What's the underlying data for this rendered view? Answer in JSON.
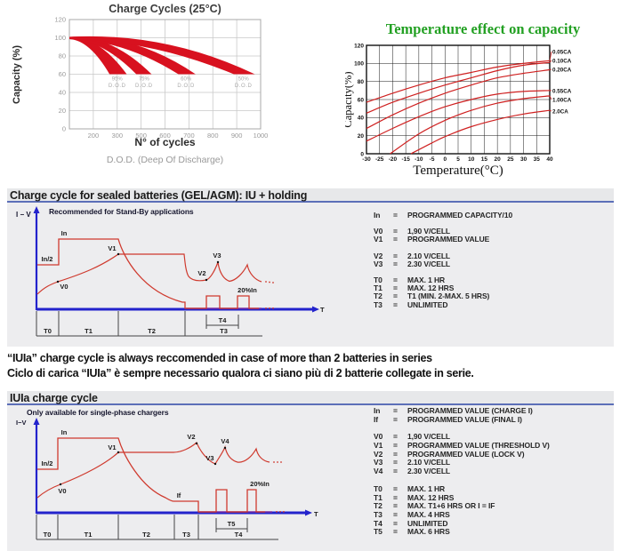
{
  "accent": {
    "red_band": "#d8111f",
    "red_line": "#cf3a2e",
    "red_curve": "#cf2020",
    "blue_axis": "#2323cc",
    "purple_overlap": "#7b2da0",
    "green_title": "#22a022",
    "header_underline": "#5c6fb8",
    "panel_bg": "#ededef",
    "header_bg": "#e7e8ea"
  },
  "chart_data": [
    {
      "id": "charge_cycles",
      "type": "area",
      "title": "Charge Cycles (25°C)",
      "xlabel": "N° of cycles",
      "ylabel": "Capacity (%)",
      "caption": "D.O.D. (Deep Of Discharge)",
      "ylim": [
        0,
        120
      ],
      "yticks": [
        0,
        20,
        40,
        60,
        80,
        100,
        120
      ],
      "xtick_labels": [
        "200",
        "300",
        "500",
        "600",
        "700",
        "800",
        "900",
        "1000"
      ],
      "grid": true,
      "band_note": "red bands start near 100% capacity and fall to 60% at the cycle counts shown; fractions are of full x-axis width",
      "bands": [
        {
          "dod": "95%",
          "sub": "D.O.D",
          "end_frac_inner": 0.21,
          "end_frac_outer": 0.3,
          "label_frac": 0.25
        },
        {
          "dod": "75%",
          "sub": "D.O.D",
          "end_frac_inner": 0.35,
          "end_frac_outer": 0.43,
          "label_frac": 0.39
        },
        {
          "dod": "60%",
          "sub": "D.O.D",
          "end_frac_inner": 0.57,
          "end_frac_outer": 0.66,
          "label_frac": 0.61
        },
        {
          "dod": "50%",
          "sub": "D.O.D",
          "end_frac_inner": 0.86,
          "end_frac_outer": 0.97,
          "label_frac": 0.91
        }
      ]
    },
    {
      "id": "temperature_effect",
      "type": "line",
      "title": "Temperature effect on capacity",
      "xlabel": "Temperature(°C)",
      "ylabel": "Capacity(%)",
      "xlim": [
        -30,
        40
      ],
      "xtick_step": 5,
      "ylim": [
        0,
        120
      ],
      "yticks": [
        0,
        20,
        40,
        60,
        80,
        100,
        120
      ],
      "grid": true,
      "legend_position": "right",
      "series": [
        {
          "name": "0.05CA",
          "points": [
            [
              -30,
              57
            ],
            [
              -20,
              67
            ],
            [
              -10,
              76
            ],
            [
              0,
              84
            ],
            [
              10,
              90
            ],
            [
              20,
              96
            ],
            [
              30,
              100
            ],
            [
              40,
              103
            ]
          ]
        },
        {
          "name": "0.10CA",
          "points": [
            [
              -30,
              45
            ],
            [
              -20,
              57
            ],
            [
              -10,
              67
            ],
            [
              0,
              76
            ],
            [
              10,
              84
            ],
            [
              20,
              92
            ],
            [
              30,
              98
            ],
            [
              40,
              101
            ]
          ]
        },
        {
          "name": "0.20CA",
          "points": [
            [
              -30,
              28
            ],
            [
              -20,
              43
            ],
            [
              -10,
              56
            ],
            [
              0,
              67
            ],
            [
              10,
              76
            ],
            [
              20,
              84
            ],
            [
              30,
              89
            ],
            [
              40,
              93
            ]
          ]
        },
        {
          "name": "0.55CA",
          "points": [
            [
              -30,
              14
            ],
            [
              -20,
              28
            ],
            [
              -10,
              41
            ],
            [
              0,
              52
            ],
            [
              10,
              60
            ],
            [
              20,
              66
            ],
            [
              30,
              69
            ],
            [
              40,
              70
            ]
          ]
        },
        {
          "name": "1.00CA",
          "points": [
            [
              -21,
              0
            ],
            [
              -10,
              22
            ],
            [
              0,
              37
            ],
            [
              10,
              48
            ],
            [
              20,
              56
            ],
            [
              30,
              61
            ],
            [
              40,
              64
            ]
          ]
        },
        {
          "name": "2.0CA",
          "points": [
            [
              -13,
              0
            ],
            [
              -5,
              12
            ],
            [
              0,
              19
            ],
            [
              10,
              30
            ],
            [
              20,
              38
            ],
            [
              30,
              44
            ],
            [
              40,
              48
            ]
          ]
        }
      ]
    }
  ],
  "panel1": {
    "title": "Charge cycle for sealed batteries (GEL/AGM): IU + holding",
    "note": "Recommended for Stand-By applications",
    "axis_label": "I − V",
    "time_label": "T",
    "wave_labels": {
      "in": "In",
      "in_half": "In/2",
      "v0": "V0",
      "v1": "V1",
      "v2": "V2",
      "v3": "V3",
      "pulse": "20%In"
    },
    "segments": [
      "T0",
      "T1",
      "T2",
      "T3"
    ],
    "bracket": "T4",
    "legend": [
      [
        {
          "k": "In",
          "v": "PROGRAMMED CAPACITY/10"
        }
      ],
      [
        {
          "k": "V0",
          "v": "1,90 V/CELL"
        },
        {
          "k": "V1",
          "v": "PROGRAMMED VALUE"
        }
      ],
      [
        {
          "k": "V2",
          "v": "2.10 V/CELL"
        },
        {
          "k": "V3",
          "v": "2.30 V/CELL"
        }
      ],
      [
        {
          "k": "T0",
          "v": "MAX. 1 HR"
        },
        {
          "k": "T1",
          "v": "MAX. 12 HRS"
        },
        {
          "k": "T2",
          "v": "T1 (MIN. 2-MAX. 5 HRS)"
        },
        {
          "k": "T3",
          "v": "UNLIMITED"
        }
      ]
    ]
  },
  "note": {
    "en": "“IUIa” charge cycle is always reccomended in case of more than 2 batteries in series",
    "it": "Ciclo di carica “IUIa” è sempre necessario qualora ci siano più di 2 batterie collegate in serie."
  },
  "panel2": {
    "title": "IUIa charge cycle",
    "note": "Only available for single-phase chargers",
    "axis_label": "I−V",
    "time_label": "T",
    "wave_labels": {
      "in": "In",
      "in_half": "In/2",
      "v0": "V0",
      "v1": "V1",
      "v2": "V2",
      "v3": "V3",
      "v4": "V4",
      "i_final": "If",
      "pulse": "20%In"
    },
    "segments": [
      "T0",
      "T1",
      "T2",
      "T3",
      "T4"
    ],
    "bracket": "T5",
    "legend": [
      [
        {
          "k": "In",
          "v": "PROGRAMMED VALUE (CHARGE I)"
        },
        {
          "k": "If",
          "v": "PROGRAMMED VALUE (FINAL I)"
        }
      ],
      [
        {
          "k": "V0",
          "v": "1,90 V/CELL"
        },
        {
          "k": "V1",
          "v": "PROGRAMMED VALUE (THRESHOLD V)"
        },
        {
          "k": "V2",
          "v": "PROGRAMMED VALUE (LOCK V)"
        },
        {
          "k": "V3",
          "v": "2.10 V/CELL"
        },
        {
          "k": "V4",
          "v": "2.30 V/CELL"
        }
      ],
      [
        {
          "k": "T0",
          "v": "MAX. 1 HR"
        },
        {
          "k": "T1",
          "v": "MAX. 12 HRS"
        },
        {
          "k": "T2",
          "v": "MAX. T1+6 HRS OR I = IF"
        },
        {
          "k": "T3",
          "v": "MAX. 4 HRS"
        },
        {
          "k": "T4",
          "v": "UNLIMITED"
        },
        {
          "k": "T5",
          "v": "MAX. 6 HRS"
        }
      ]
    ]
  }
}
